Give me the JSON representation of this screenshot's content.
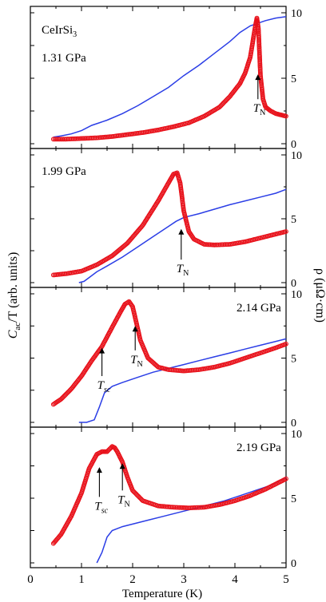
{
  "chart_data": {
    "type": "line",
    "title": "",
    "xlabel": "Temperature (K)",
    "ylabel_left_main": "C",
    "ylabel_left_sub": "ac",
    "ylabel_left_rest": "/T (arb. units)",
    "ylabel_right": "ρ (μΩ·cm)",
    "xlim": [
      0,
      5
    ],
    "xticks": [
      "0",
      "1",
      "2",
      "3",
      "4",
      "5"
    ],
    "right_yticks": [
      "0",
      "5",
      "10"
    ],
    "grid": false,
    "legend": "none",
    "colors": {
      "cac": "#e8111a",
      "rho": "#2b3ee6"
    },
    "panels": [
      {
        "pressure": "1.31 GPa",
        "compound": "CeIrSi3",
        "rho_ylim": [
          0,
          10
        ],
        "cac_ylim": [
          0,
          10
        ],
        "annotations": [
          {
            "label": "T",
            "sub": "N",
            "x": 4.45,
            "y_arrow_top": 3.4,
            "y_arrow_bottom": 5.3
          }
        ],
        "rho": {
          "x": [
            0.45,
            0.6,
            0.8,
            1.0,
            1.2,
            1.5,
            1.8,
            2.1,
            2.4,
            2.7,
            3.0,
            3.3,
            3.6,
            3.9,
            4.1,
            4.3,
            4.45,
            4.6,
            4.8,
            5.0
          ],
          "y": [
            0.5,
            0.6,
            0.75,
            1.0,
            1.4,
            1.8,
            2.3,
            2.9,
            3.6,
            4.3,
            5.2,
            6.0,
            6.9,
            7.8,
            8.5,
            9.0,
            9.2,
            9.4,
            9.6,
            9.7
          ]
        },
        "cac": {
          "x": [
            0.45,
            0.7,
            1.0,
            1.3,
            1.6,
            1.9,
            2.2,
            2.5,
            2.8,
            3.1,
            3.4,
            3.7,
            3.9,
            4.1,
            4.2,
            4.3,
            4.35,
            4.4,
            4.43,
            4.46,
            4.5,
            4.55,
            4.6,
            4.7,
            4.8,
            4.9,
            5.0
          ],
          "y": [
            0.35,
            0.35,
            0.4,
            0.45,
            0.55,
            0.7,
            0.85,
            1.05,
            1.3,
            1.6,
            2.1,
            2.8,
            3.6,
            4.6,
            5.4,
            6.6,
            7.8,
            9.0,
            9.6,
            8.8,
            5.2,
            3.4,
            2.8,
            2.5,
            2.3,
            2.2,
            2.1
          ]
        }
      },
      {
        "pressure": "1.99 GPa",
        "rho_ylim": [
          0,
          10
        ],
        "cac_ylim": [
          0,
          10
        ],
        "annotations": [
          {
            "label": "T",
            "sub": "N",
            "x": 2.95,
            "y_arrow_top": 4.2,
            "y_arrow_bottom": 1.8
          }
        ],
        "rho": {
          "x": [
            0.95,
            1.05,
            1.15,
            1.3,
            1.5,
            1.8,
            2.1,
            2.4,
            2.7,
            2.85,
            3.0,
            3.3,
            3.6,
            3.9,
            4.2,
            4.5,
            4.8,
            5.0
          ],
          "y": [
            0.0,
            0.1,
            0.4,
            0.85,
            1.3,
            2.0,
            2.8,
            3.6,
            4.4,
            4.8,
            5.1,
            5.4,
            5.75,
            6.1,
            6.4,
            6.7,
            7.0,
            7.3
          ]
        },
        "cac": {
          "x": [
            0.45,
            0.7,
            1.0,
            1.3,
            1.6,
            1.9,
            2.2,
            2.5,
            2.7,
            2.8,
            2.87,
            2.93,
            3.0,
            3.1,
            3.2,
            3.4,
            3.6,
            3.9,
            4.2,
            4.5,
            4.8,
            5.0
          ],
          "y": [
            0.6,
            0.7,
            0.9,
            1.4,
            2.1,
            3.1,
            4.5,
            6.4,
            7.8,
            8.5,
            8.6,
            7.8,
            5.6,
            4.0,
            3.4,
            3.0,
            2.95,
            3.0,
            3.2,
            3.5,
            3.8,
            4.0
          ]
        }
      },
      {
        "pressure": "2.14 GPa",
        "rho_ylim": [
          0,
          10
        ],
        "cac_ylim": [
          0,
          10
        ],
        "annotations": [
          {
            "label": "T",
            "sub": "sc",
            "italic_sub": true,
            "x": 1.4,
            "y_arrow_top": 3.6,
            "y_arrow_bottom": 5.8
          },
          {
            "label": "T",
            "sub": "N",
            "x": 2.05,
            "y_arrow_top": 5.6,
            "y_arrow_bottom": 7.5
          }
        ],
        "rho": {
          "x": [
            0.95,
            1.1,
            1.25,
            1.35,
            1.45,
            1.6,
            1.8,
            2.1,
            2.4,
            2.7,
            3.0,
            3.3,
            3.6,
            3.9,
            4.2,
            4.5,
            4.8,
            5.0
          ],
          "y": [
            0.0,
            0.0,
            0.2,
            1.2,
            2.3,
            2.8,
            3.1,
            3.5,
            3.9,
            4.2,
            4.5,
            4.8,
            5.1,
            5.4,
            5.7,
            6.0,
            6.3,
            6.5
          ]
        },
        "cac": {
          "x": [
            0.45,
            0.6,
            0.8,
            1.0,
            1.2,
            1.4,
            1.6,
            1.75,
            1.85,
            1.93,
            2.0,
            2.07,
            2.15,
            2.3,
            2.5,
            2.7,
            3.0,
            3.3,
            3.6,
            3.9,
            4.2,
            4.5,
            4.8,
            5.0
          ],
          "y": [
            1.4,
            1.8,
            2.6,
            3.6,
            4.8,
            5.9,
            7.4,
            8.5,
            9.2,
            9.4,
            9.0,
            7.8,
            6.4,
            5.0,
            4.3,
            4.1,
            4.0,
            4.1,
            4.3,
            4.6,
            5.0,
            5.4,
            5.8,
            6.1
          ]
        }
      },
      {
        "pressure": "2.19 GPa",
        "rho_ylim": [
          0,
          10
        ],
        "cac_ylim": [
          0,
          10
        ],
        "annotations": [
          {
            "label": "T",
            "sub": "sc",
            "italic_sub": true,
            "x": 1.35,
            "y_arrow_top": 5.1,
            "y_arrow_bottom": 7.4
          },
          {
            "label": "T",
            "sub": "N",
            "x": 1.8,
            "y_arrow_top": 5.6,
            "y_arrow_bottom": 7.7
          }
        ],
        "rho": {
          "x": [
            1.3,
            1.4,
            1.5,
            1.6,
            1.8,
            2.0,
            2.3,
            2.6,
            2.9,
            3.2,
            3.5,
            3.8,
            4.1,
            4.4,
            4.7,
            5.0
          ],
          "y": [
            0.0,
            0.8,
            2.0,
            2.5,
            2.8,
            3.0,
            3.3,
            3.6,
            3.9,
            4.2,
            4.5,
            4.8,
            5.2,
            5.6,
            6.0,
            6.6
          ]
        },
        "cac": {
          "x": [
            0.45,
            0.6,
            0.8,
            1.0,
            1.15,
            1.3,
            1.4,
            1.5,
            1.55,
            1.6,
            1.65,
            1.7,
            1.8,
            1.9,
            2.0,
            2.2,
            2.5,
            2.8,
            3.1,
            3.4,
            3.7,
            4.0,
            4.3,
            4.6,
            4.8,
            5.0
          ],
          "y": [
            1.5,
            2.2,
            3.6,
            5.4,
            7.3,
            8.4,
            8.6,
            8.6,
            8.8,
            9.0,
            8.9,
            8.6,
            7.8,
            6.6,
            5.6,
            4.8,
            4.4,
            4.3,
            4.25,
            4.3,
            4.5,
            4.8,
            5.2,
            5.7,
            6.1,
            6.5
          ]
        }
      }
    ]
  }
}
